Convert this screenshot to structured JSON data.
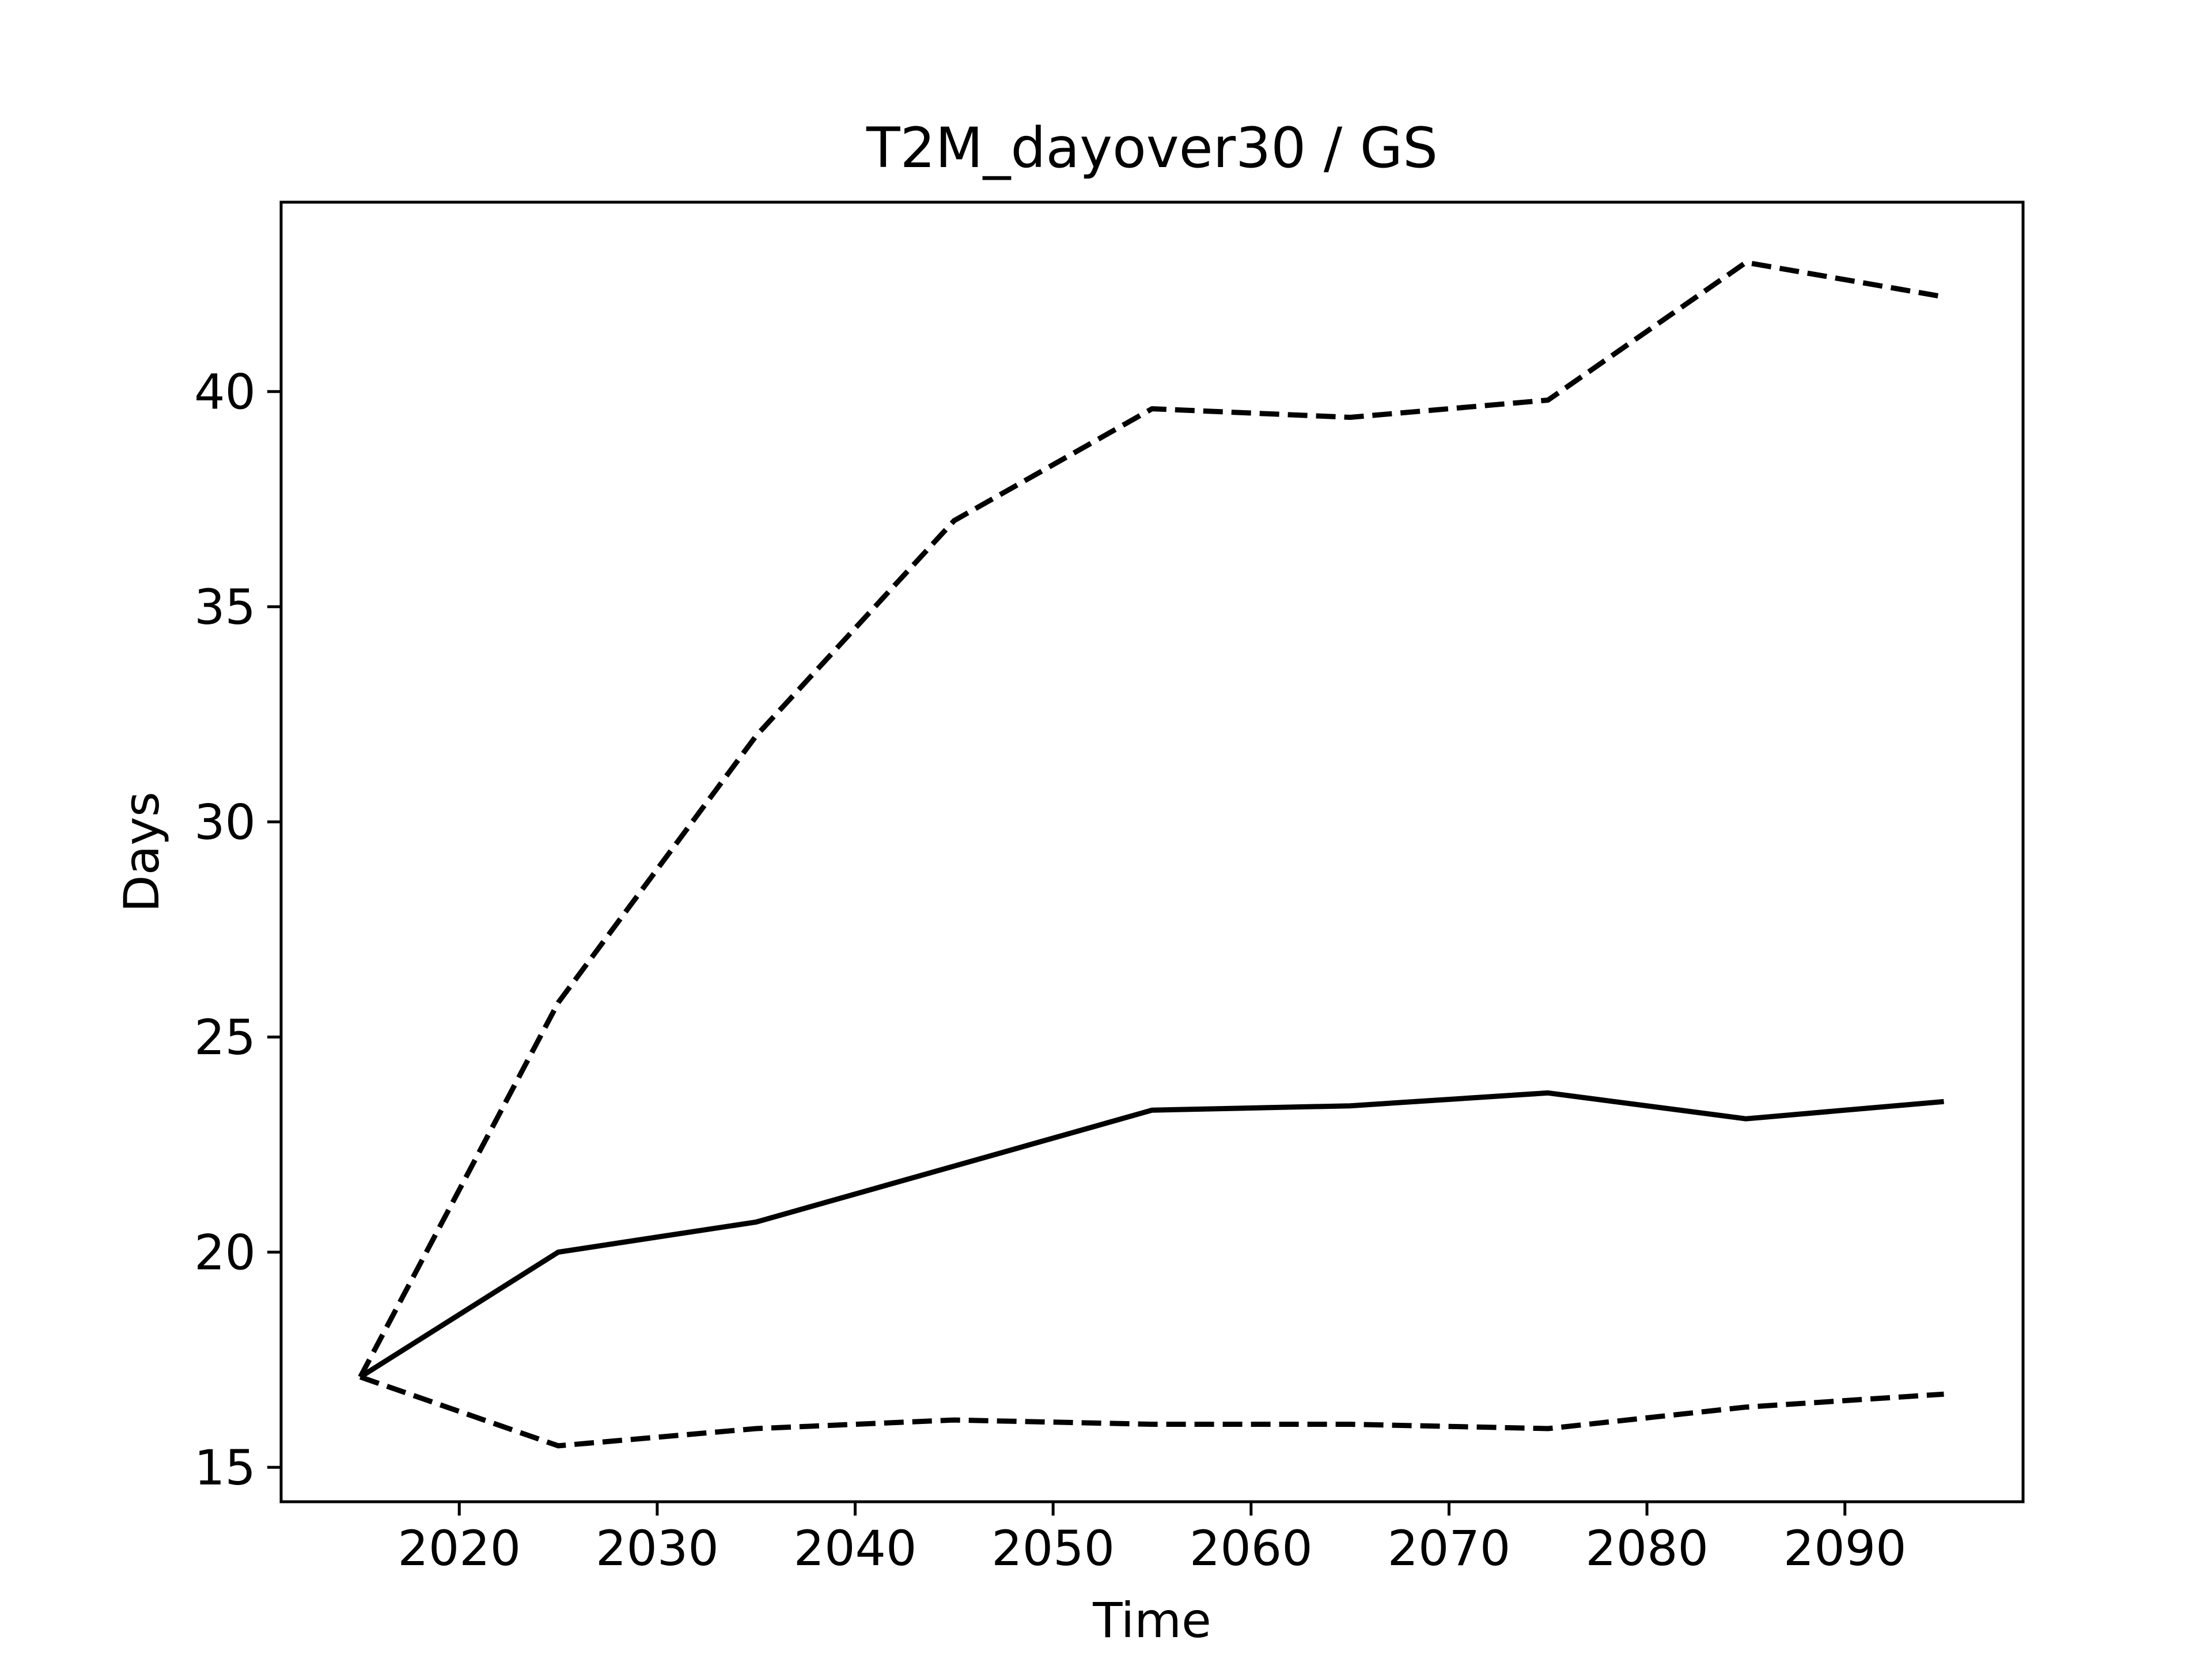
{
  "chart_data": {
    "type": "line",
    "title": "T2M_dayover30 / GS",
    "xlabel": "Time",
    "ylabel": "Days",
    "xlim": [
      2011,
      2099
    ],
    "ylim": [
      14.2,
      44.4
    ],
    "xticks": [
      2020,
      2030,
      2040,
      2050,
      2060,
      2070,
      2080,
      2090
    ],
    "yticks": [
      15,
      20,
      25,
      30,
      35,
      40
    ],
    "grid": false,
    "legend": "none",
    "line_color": "#000000",
    "x": [
      2015,
      2025,
      2035,
      2045,
      2055,
      2065,
      2075,
      2085,
      2095
    ],
    "series": [
      {
        "style": "dashed",
        "values": [
          17.1,
          25.8,
          32.0,
          37.0,
          39.6,
          39.4,
          39.8,
          43.0,
          42.2
        ]
      },
      {
        "style": "solid",
        "values": [
          17.1,
          20.0,
          20.7,
          22.0,
          23.3,
          23.4,
          23.7,
          23.1,
          23.5
        ]
      },
      {
        "style": "dashed",
        "values": [
          17.1,
          15.5,
          15.9,
          16.1,
          16.0,
          16.0,
          15.9,
          16.4,
          16.7
        ]
      }
    ]
  }
}
